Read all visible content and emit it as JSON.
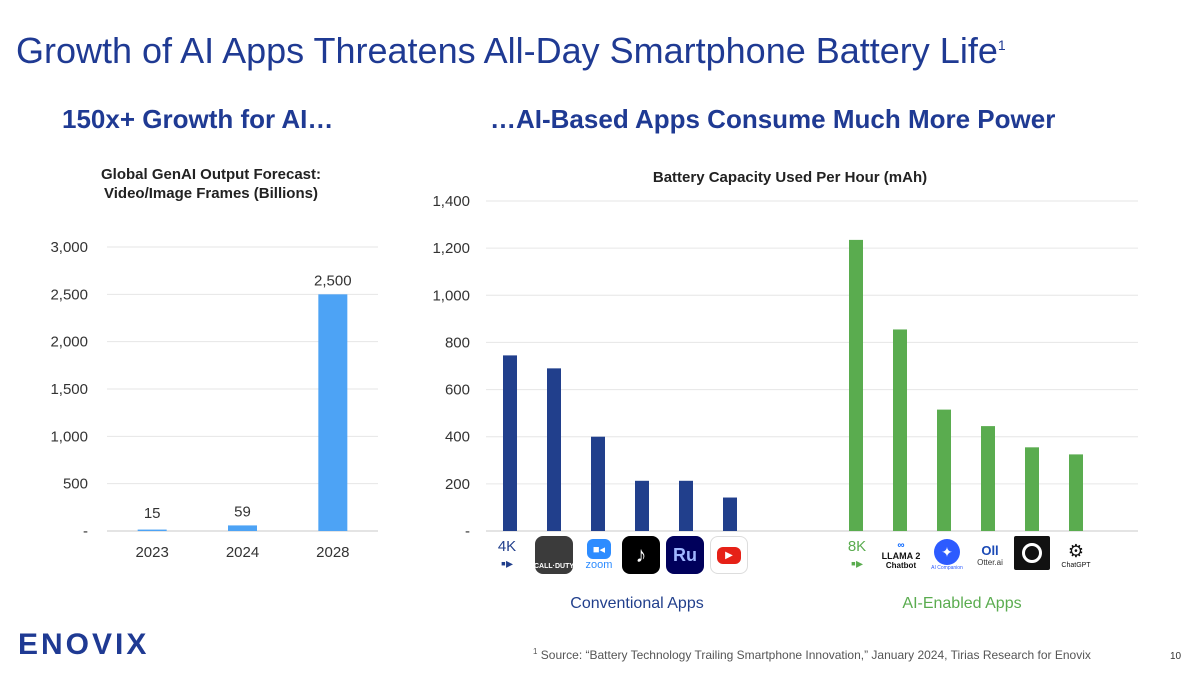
{
  "slide": {
    "title": "Growth of AI Apps Threatens All-Day Smartphone Battery Life",
    "title_footnote_mark": "1",
    "left_heading": "150x+ Growth for AI…",
    "right_heading": "…AI-Based Apps Consume Much More Power",
    "footnote_mark": "1",
    "footnote": "Source: “Battery Technology Trailing Smartphone Innovation,” January 2024, Tirias Research for Enovix",
    "page_number": "10",
    "logo": "ENOVIX"
  },
  "colors": {
    "title": "#1f3a93",
    "bar_left": "#4da3f5",
    "bar_conventional": "#213f8c",
    "bar_ai": "#5aac4f",
    "label_conventional": "#213f8c",
    "label_ai": "#5aac4f"
  },
  "chart_data": [
    {
      "type": "bar",
      "title": "Global GenAI Output Forecast: Video/Image Frames (Billions)",
      "title_line1": "Global GenAI Output Forecast:",
      "title_line2": "Video/Image Frames (Billions)",
      "categories": [
        "2023",
        "2024",
        "2028"
      ],
      "values": [
        15,
        59,
        2500
      ],
      "data_labels": [
        "15",
        "59",
        "2,500"
      ],
      "ylim": [
        0,
        3000
      ],
      "yticks": [
        0,
        500,
        1000,
        1500,
        2000,
        2500,
        3000
      ],
      "ytick_labels": [
        "-",
        "500",
        "1,000",
        "1,500",
        "2,000",
        "2,500",
        "3,000"
      ],
      "grid": true
    },
    {
      "type": "bar",
      "title": "Battery Capacity Used Per Hour (mAh)",
      "ylim": [
        0,
        1400
      ],
      "yticks": [
        0,
        200,
        400,
        600,
        800,
        1000,
        1200,
        1400
      ],
      "ytick_labels": [
        "-",
        "200",
        "400",
        "600",
        "800",
        "1,000",
        "1,200",
        "1,400"
      ],
      "grid": true,
      "groups": [
        {
          "name": "Conventional Apps",
          "apps": [
            "4K video",
            "Call of Duty",
            "Zoom",
            "TikTok",
            "Adobe Premiere Rush",
            "YouTube"
          ],
          "values": [
            745,
            690,
            400,
            213,
            213,
            142
          ]
        },
        {
          "name": "AI-Enabled Apps",
          "apps": [
            "8K video",
            "Llama 2 Chatbot",
            "Zoom AI Companion",
            "Otter.ai",
            "Runway",
            "ChatGPT"
          ],
          "values": [
            1235,
            855,
            515,
            445,
            355,
            325
          ]
        }
      ]
    }
  ],
  "icons": {
    "k4": {
      "name": "camera-4k-icon",
      "text": "4K"
    },
    "cod": {
      "name": "call-of-duty-icon",
      "text": "CALL·DUTY"
    },
    "zoom": {
      "name": "zoom-icon",
      "text": "zoom"
    },
    "tiktok": {
      "name": "tiktok-icon",
      "text": "♪"
    },
    "rush": {
      "name": "premiere-rush-icon",
      "text": "Ru"
    },
    "youtube": {
      "name": "youtube-icon",
      "text": "▶"
    },
    "k8": {
      "name": "camera-8k-icon",
      "text": "8K"
    },
    "llama": {
      "name": "llama2-chatbot-icon",
      "text1": "LLAMA 2",
      "text2": "Chatbot"
    },
    "zoomai": {
      "name": "zoom-ai-companion-icon",
      "text": "AI Companion"
    },
    "otter": {
      "name": "otter-ai-icon",
      "text1": "Oll",
      "text2": "Otter.ai"
    },
    "runway": {
      "name": "runway-icon"
    },
    "chatgpt": {
      "name": "chatgpt-icon",
      "text": "ChatGPT"
    }
  }
}
